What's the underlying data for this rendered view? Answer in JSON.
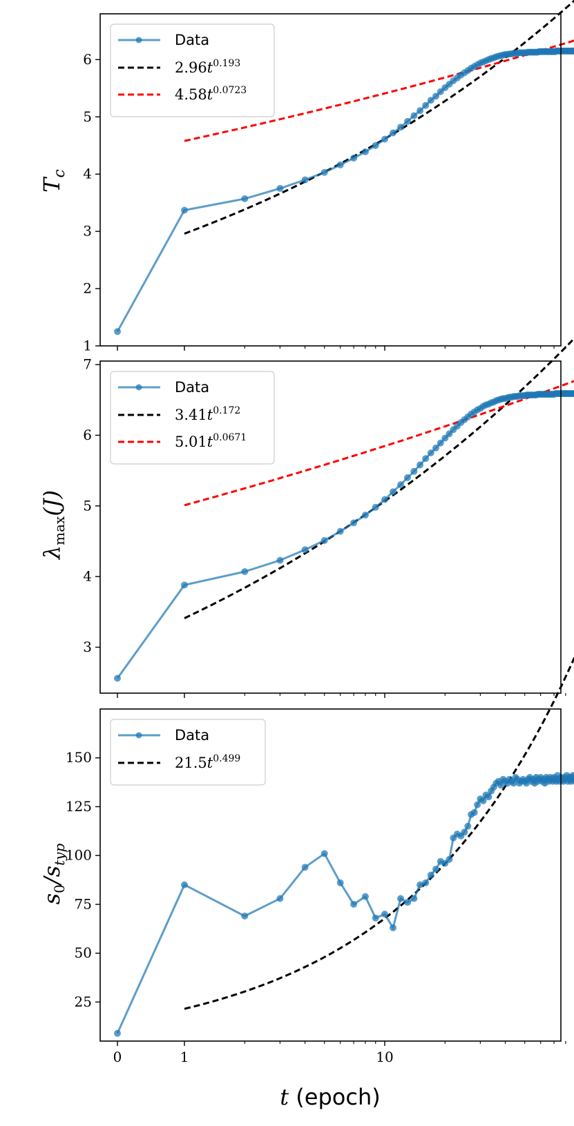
{
  "chart_data": [
    {
      "type": "line",
      "panel": "top",
      "ylabel": "T_c",
      "ylabel_parts": {
        "base": "T",
        "sub": "c"
      },
      "ylim": [
        1,
        6.8
      ],
      "yticks": [
        "1",
        "2",
        "3",
        "4",
        "5",
        "6"
      ],
      "yticks_values": [
        1,
        2,
        3,
        4,
        5,
        6
      ],
      "legend": [
        {
          "label": "Data",
          "kind": "data"
        },
        {
          "label": "2.96t^0.193",
          "coef": "2.96",
          "exp": "0.193",
          "kind": "fit",
          "color": "#000000"
        },
        {
          "label": "4.58t^0.0723",
          "coef": "4.58",
          "exp": "0.0723",
          "kind": "fit",
          "color": "#ff0000"
        }
      ],
      "series": [
        {
          "name": "Data",
          "color": "#1f77b4",
          "x": [
            0,
            1,
            2,
            3,
            4,
            5,
            6,
            7,
            8,
            9,
            10,
            11,
            12,
            13,
            14,
            15,
            16,
            17,
            18,
            19,
            20,
            21,
            22,
            23,
            24,
            25,
            26,
            27,
            28,
            29,
            30,
            31,
            32,
            33,
            34,
            35,
            36,
            37,
            38,
            39,
            40,
            41,
            42,
            43,
            44,
            45,
            46,
            47,
            48,
            49,
            50,
            51,
            52,
            53,
            54,
            55,
            56,
            57,
            58,
            59,
            60,
            61,
            62,
            63,
            64,
            65,
            66,
            67,
            68,
            69,
            70,
            71,
            72,
            73,
            74,
            75,
            76,
            77,
            78,
            79,
            80,
            81,
            82,
            83,
            84,
            85,
            86,
            87,
            88,
            89,
            90,
            91,
            92,
            93,
            94,
            95,
            96,
            97,
            98,
            99,
            100
          ],
          "values": [
            1.25,
            3.37,
            3.57,
            3.75,
            3.9,
            4.03,
            4.16,
            4.28,
            4.39,
            4.5,
            4.61,
            4.72,
            4.82,
            4.92,
            5.02,
            5.11,
            5.2,
            5.29,
            5.36,
            5.44,
            5.51,
            5.57,
            5.63,
            5.68,
            5.73,
            5.77,
            5.81,
            5.85,
            5.88,
            5.91,
            5.94,
            5.96,
            5.98,
            6.0,
            6.02,
            6.03,
            6.05,
            6.06,
            6.07,
            6.08,
            6.09,
            6.09,
            6.1,
            6.1,
            6.11,
            6.11,
            6.11,
            6.12,
            6.12,
            6.12,
            6.12,
            6.12,
            6.13,
            6.13,
            6.13,
            6.13,
            6.13,
            6.13,
            6.13,
            6.14,
            6.14,
            6.14,
            6.14,
            6.14,
            6.14,
            6.14,
            6.14,
            6.14,
            6.14,
            6.14,
            6.14,
            6.14,
            6.15,
            6.15,
            6.15,
            6.15,
            6.15,
            6.15,
            6.15,
            6.15,
            6.15,
            6.15,
            6.15,
            6.15,
            6.15,
            6.15,
            6.15,
            6.15,
            6.15,
            6.15,
            6.15,
            6.15,
            6.15,
            6.15,
            6.15,
            6.15,
            6.15,
            6.15,
            6.15,
            6.15,
            6.15
          ]
        },
        {
          "name": "2.96t^0.193",
          "color": "#000000",
          "dashed": true,
          "fit": {
            "a": 2.96,
            "b": 0.193
          }
        },
        {
          "name": "4.58t^0.0723",
          "color": "#ff0000",
          "dashed": true,
          "fit": {
            "a": 4.58,
            "b": 0.0723
          }
        }
      ]
    },
    {
      "type": "line",
      "panel": "middle",
      "ylabel": "λ_max(J)",
      "ylabel_parts": {
        "base": "λ",
        "sub": "max",
        "tail": "(J)"
      },
      "ylim": [
        2.35,
        7.05
      ],
      "yticks": [
        "3",
        "4",
        "5",
        "6",
        "7"
      ],
      "yticks_values": [
        3,
        4,
        5,
        6,
        7
      ],
      "legend": [
        {
          "label": "Data",
          "kind": "data"
        },
        {
          "label": "3.41t^0.172",
          "coef": "3.41",
          "exp": "0.172",
          "kind": "fit",
          "color": "#000000"
        },
        {
          "label": "5.01t^0.0671",
          "coef": "5.01",
          "exp": "0.0671",
          "kind": "fit",
          "color": "#ff0000"
        }
      ],
      "series": [
        {
          "name": "Data",
          "color": "#1f77b4",
          "x": [
            0,
            1,
            2,
            3,
            4,
            5,
            6,
            7,
            8,
            9,
            10,
            11,
            12,
            13,
            14,
            15,
            16,
            17,
            18,
            19,
            20,
            21,
            22,
            23,
            24,
            25,
            26,
            27,
            28,
            29,
            30,
            31,
            32,
            33,
            34,
            35,
            36,
            37,
            38,
            39,
            40,
            41,
            42,
            43,
            44,
            45,
            46,
            47,
            48,
            49,
            50,
            51,
            52,
            53,
            54,
            55,
            56,
            57,
            58,
            59,
            60,
            61,
            62,
            63,
            64,
            65,
            66,
            67,
            68,
            69,
            70,
            71,
            72,
            73,
            74,
            75,
            76,
            77,
            78,
            79,
            80,
            81,
            82,
            83,
            84,
            85,
            86,
            87,
            88,
            89,
            90,
            91,
            92,
            93,
            94,
            95,
            96,
            97,
            98,
            99,
            100
          ],
          "values": [
            2.56,
            3.88,
            4.07,
            4.23,
            4.38,
            4.51,
            4.64,
            4.76,
            4.87,
            4.98,
            5.09,
            5.2,
            5.3,
            5.4,
            5.49,
            5.58,
            5.67,
            5.75,
            5.82,
            5.89,
            5.96,
            6.02,
            6.08,
            6.13,
            6.18,
            6.22,
            6.26,
            6.3,
            6.33,
            6.36,
            6.38,
            6.41,
            6.43,
            6.44,
            6.46,
            6.47,
            6.49,
            6.5,
            6.51,
            6.52,
            6.52,
            6.53,
            6.54,
            6.54,
            6.55,
            6.55,
            6.55,
            6.56,
            6.56,
            6.56,
            6.56,
            6.57,
            6.57,
            6.57,
            6.57,
            6.57,
            6.57,
            6.57,
            6.58,
            6.58,
            6.58,
            6.58,
            6.58,
            6.58,
            6.58,
            6.58,
            6.58,
            6.58,
            6.58,
            6.58,
            6.58,
            6.59,
            6.59,
            6.59,
            6.59,
            6.59,
            6.59,
            6.59,
            6.59,
            6.59,
            6.59,
            6.59,
            6.59,
            6.59,
            6.59,
            6.59,
            6.59,
            6.59,
            6.59,
            6.59,
            6.59,
            6.59,
            6.59,
            6.59,
            6.59,
            6.59,
            6.59,
            6.59,
            6.59,
            6.59,
            6.59
          ]
        },
        {
          "name": "3.41t^0.172",
          "color": "#000000",
          "dashed": true,
          "fit": {
            "a": 3.41,
            "b": 0.172
          }
        },
        {
          "name": "5.01t^0.0671",
          "color": "#ff0000",
          "dashed": true,
          "fit": {
            "a": 5.01,
            "b": 0.0671
          }
        }
      ]
    },
    {
      "type": "line",
      "panel": "bottom",
      "ylabel": "s_0/s_typ",
      "ylabel_parts": {
        "base": "s",
        "sub": "0",
        "mid": "/s",
        "sub2": "typ"
      },
      "ylim": [
        5,
        175
      ],
      "yticks": [
        "25",
        "50",
        "75",
        "100",
        "125",
        "150"
      ],
      "yticks_values": [
        25,
        50,
        75,
        100,
        125,
        150
      ],
      "xlabel": "t (epoch)",
      "xlabel_parts": {
        "var": "t",
        "rest": " (epoch)"
      },
      "xscale": "symlog",
      "xticks": [
        "0",
        "1",
        "10"
      ],
      "xticks_values": [
        0,
        1,
        10
      ],
      "legend": [
        {
          "label": "Data",
          "kind": "data"
        },
        {
          "label": "21.5t^0.499",
          "coef": "21.5",
          "exp": "0.499",
          "kind": "fit",
          "color": "#000000"
        }
      ],
      "series": [
        {
          "name": "Data",
          "color": "#1f77b4",
          "x": [
            0,
            1,
            2,
            3,
            4,
            5,
            6,
            7,
            8,
            9,
            10,
            11,
            12,
            13,
            14,
            15,
            16,
            17,
            18,
            19,
            20,
            21,
            22,
            23,
            24,
            25,
            26,
            27,
            28,
            29,
            30,
            31,
            32,
            33,
            34,
            35,
            36,
            37,
            38,
            39,
            40,
            41,
            42,
            43,
            44,
            45,
            46,
            47,
            48,
            49,
            50,
            51,
            52,
            53,
            54,
            55,
            56,
            57,
            58,
            59,
            60,
            61,
            62,
            63,
            64,
            65,
            66,
            67,
            68,
            69,
            70,
            71,
            72,
            73,
            74,
            75,
            76,
            77,
            78,
            79,
            80,
            81,
            82,
            83,
            84,
            85,
            86,
            87,
            88,
            89,
            90,
            91,
            92,
            93,
            94,
            95,
            96,
            97,
            98,
            99,
            100
          ],
          "values": [
            9,
            85,
            69,
            78,
            94,
            101,
            86,
            75,
            79,
            68,
            70,
            63,
            78,
            76,
            78,
            85,
            86,
            90,
            93,
            97,
            96,
            98,
            109,
            111,
            110,
            112,
            115,
            121,
            122,
            126,
            129,
            128,
            131,
            130,
            133,
            135,
            137,
            138,
            136,
            139,
            138,
            137,
            139,
            138,
            137,
            140,
            139,
            137,
            138,
            139,
            138,
            137,
            139,
            140,
            138,
            139,
            137,
            140,
            138,
            139,
            140,
            138,
            139,
            137,
            140,
            139,
            138,
            140,
            139,
            138,
            140,
            139,
            138,
            141,
            139,
            138,
            140,
            139,
            138,
            140,
            139,
            141,
            138,
            140,
            139,
            138,
            140,
            141,
            139,
            138,
            140,
            139,
            141,
            140,
            138,
            139,
            141,
            140,
            139,
            140,
            140
          ]
        },
        {
          "name": "21.5t^0.499",
          "color": "#000000",
          "dashed": true,
          "fit": {
            "a": 21.5,
            "b": 0.499
          }
        }
      ]
    }
  ]
}
